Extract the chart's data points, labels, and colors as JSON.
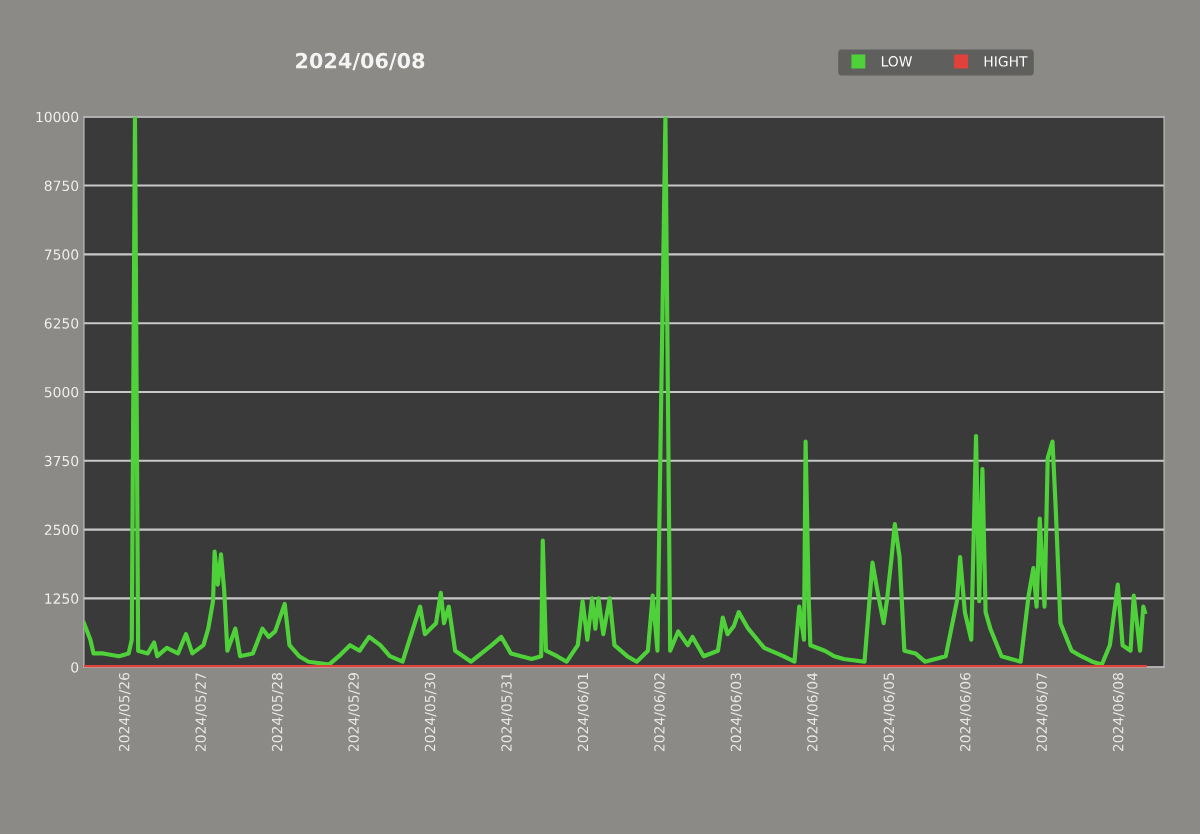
{
  "chart_data": {
    "type": "line",
    "title": "2024/06/08",
    "legend": "top right",
    "grid": "y",
    "xlim": [
      "2024-05-25T11:00",
      "2024-06-08T14:00"
    ],
    "xticks": [
      {
        "value": "2024-05-26",
        "label": "2024/05/26"
      },
      {
        "value": "2024-05-27",
        "label": "2024/05/27"
      },
      {
        "value": "2024-05-28",
        "label": "2024/05/28"
      },
      {
        "value": "2024-05-29",
        "label": "2024/05/29"
      },
      {
        "value": "2024-05-30",
        "label": "2024/05/30"
      },
      {
        "value": "2024-05-31",
        "label": "2024/05/31"
      },
      {
        "value": "2024-06-01",
        "label": "2024/06/01"
      },
      {
        "value": "2024-06-02",
        "label": "2024/06/02"
      },
      {
        "value": "2024-06-03",
        "label": "2024/06/03"
      },
      {
        "value": "2024-06-04",
        "label": "2024/06/04"
      },
      {
        "value": "2024-06-05",
        "label": "2024/06/05"
      },
      {
        "value": "2024-06-06",
        "label": "2024/06/06"
      },
      {
        "value": "2024-06-07",
        "label": "2024/06/07"
      },
      {
        "value": "2024-06-08",
        "label": "2024/06/08"
      }
    ],
    "ylim": [
      0,
      10000
    ],
    "yticks": [
      0,
      1250,
      2500,
      3750,
      5000,
      6250,
      7500,
      8750,
      10000
    ],
    "series": [
      {
        "name": "LOW",
        "color": "#4fd13a",
        "x": [
          "2024-05-25T11:00",
          "2024-05-25T13:00",
          "2024-05-25T14:00",
          "2024-05-25T17:00",
          "2024-05-25T22:00",
          "2024-05-26T01:00",
          "2024-05-26T02:00",
          "2024-05-26T03:00",
          "2024-05-26T04:00",
          "2024-05-26T07:00",
          "2024-05-26T09:00",
          "2024-05-26T10:00",
          "2024-05-26T13:00",
          "2024-05-26T16:30",
          "2024-05-26T19:00",
          "2024-05-26T21:00",
          "2024-05-27T00:30",
          "2024-05-27T02:00",
          "2024-05-27T03:30",
          "2024-05-27T04:00",
          "2024-05-27T05:00",
          "2024-05-27T06:00",
          "2024-05-27T07:00",
          "2024-05-27T08:00",
          "2024-05-27T10:30",
          "2024-05-27T12:00",
          "2024-05-27T16:00",
          "2024-05-27T19:00",
          "2024-05-27T21:00",
          "2024-05-27T23:00",
          "2024-05-28T02:00",
          "2024-05-28T03:30",
          "2024-05-28T06:30",
          "2024-05-28T09:30",
          "2024-05-28T16:00",
          "2024-05-28T19:00",
          "2024-05-28T22:30",
          "2024-05-29T01:30",
          "2024-05-29T04:30",
          "2024-05-29T08:00",
          "2024-05-29T11:00",
          "2024-05-29T15:00",
          "2024-05-29T20:30",
          "2024-05-29T22:00",
          "2024-05-30T01:30",
          "2024-05-30T03:00",
          "2024-05-30T04:00",
          "2024-05-30T05:30",
          "2024-05-30T07:30",
          "2024-05-30T12:30",
          "2024-05-30T19:00",
          "2024-05-30T22:00",
          "2024-05-31T01:00",
          "2024-05-31T07:30",
          "2024-05-31T10:30",
          "2024-05-31T11:00",
          "2024-05-31T12:00",
          "2024-05-31T15:30",
          "2024-05-31T18:30",
          "2024-05-31T22:00",
          "2024-05-31T23:30",
          "2024-06-01T01:00",
          "2024-06-01T02:30",
          "2024-06-01T03:30",
          "2024-06-01T04:30",
          "2024-06-01T06:00",
          "2024-06-01T08:00",
          "2024-06-01T09:30",
          "2024-06-01T13:30",
          "2024-06-01T16:30",
          "2024-06-01T20:00",
          "2024-06-01T21:30",
          "2024-06-01T23:00",
          "2024-06-02T01:30",
          "2024-06-02T03:00",
          "2024-06-02T05:30",
          "2024-06-02T08:30",
          "2024-06-02T10:00",
          "2024-06-02T13:30",
          "2024-06-02T18:00",
          "2024-06-02T19:30",
          "2024-06-02T21:00",
          "2024-06-02T23:00",
          "2024-06-03T00:30",
          "2024-06-03T03:30",
          "2024-06-03T08:30",
          "2024-06-03T14:30",
          "2024-06-03T18:00",
          "2024-06-03T19:30",
          "2024-06-03T21:00",
          "2024-06-03T21:30",
          "2024-06-03T22:30",
          "2024-06-03T23:00",
          "2024-06-04T03:30",
          "2024-06-04T06:30",
          "2024-06-04T09:30",
          "2024-06-04T16:00",
          "2024-06-04T18:30",
          "2024-06-04T20:00",
          "2024-06-04T22:00",
          "2024-06-04T23:00",
          "2024-06-05T00:30",
          "2024-06-05T01:30",
          "2024-06-05T03:00",
          "2024-06-05T04:30",
          "2024-06-05T08:00",
          "2024-06-05T11:00",
          "2024-06-05T17:30",
          "2024-06-05T21:00",
          "2024-06-05T22:00",
          "2024-06-05T23:30",
          "2024-06-06T01:30",
          "2024-06-06T03:00",
          "2024-06-06T04:00",
          "2024-06-06T05:00",
          "2024-06-06T06:00",
          "2024-06-06T07:30",
          "2024-06-06T11:00",
          "2024-06-06T14:00",
          "2024-06-06T17:00",
          "2024-06-06T19:30",
          "2024-06-06T21:00",
          "2024-06-06T22:00",
          "2024-06-06T23:00",
          "2024-06-07T00:30",
          "2024-06-07T01:30",
          "2024-06-07T03:00",
          "2024-06-07T04:00",
          "2024-06-07T05:30",
          "2024-06-07T09:00",
          "2024-06-07T12:00",
          "2024-06-07T15:30",
          "2024-06-07T18:30",
          "2024-06-07T21:00",
          "2024-06-07T23:30",
          "2024-06-08T01:00",
          "2024-06-08T03:30",
          "2024-06-08T04:30",
          "2024-06-08T06:30",
          "2024-06-08T07:30",
          "2024-06-08T08:00"
        ],
        "values": [
          800,
          500,
          250,
          250,
          200,
          250,
          500,
          10000,
          300,
          250,
          450,
          200,
          350,
          250,
          600,
          250,
          400,
          700,
          1200,
          2100,
          1500,
          2050,
          1400,
          300,
          700,
          200,
          250,
          700,
          550,
          650,
          1150,
          400,
          200,
          100,
          50,
          200,
          400,
          300,
          550,
          400,
          200,
          100,
          1100,
          600,
          800,
          1350,
          800,
          1100,
          300,
          100,
          400,
          550,
          250,
          150,
          200,
          2300,
          300,
          200,
          100,
          400,
          1200,
          500,
          1250,
          700,
          1250,
          600,
          1250,
          400,
          200,
          100,
          300,
          1300,
          300,
          10000,
          300,
          650,
          400,
          550,
          200,
          300,
          900,
          600,
          750,
          1000,
          700,
          350,
          200,
          100,
          1100,
          500,
          4100,
          1200,
          400,
          300,
          200,
          150,
          100,
          1900,
          1400,
          800,
          1200,
          2000,
          2600,
          2000,
          300,
          250,
          100,
          200,
          1200,
          2000,
          1000,
          500,
          4200,
          1200,
          3600,
          1000,
          700,
          200,
          150,
          100,
          1300,
          1800,
          1100,
          2700,
          1100,
          3800,
          4100,
          2900,
          800,
          300,
          200,
          100,
          50,
          400,
          1500,
          400,
          300,
          1300,
          300,
          1100,
          1000
        ]
      },
      {
        "name": "HIGHT",
        "color": "#e0413a",
        "x": [
          "2024-05-25T11:00",
          "2024-06-08T08:00"
        ],
        "values": [
          0,
          0
        ]
      }
    ]
  }
}
